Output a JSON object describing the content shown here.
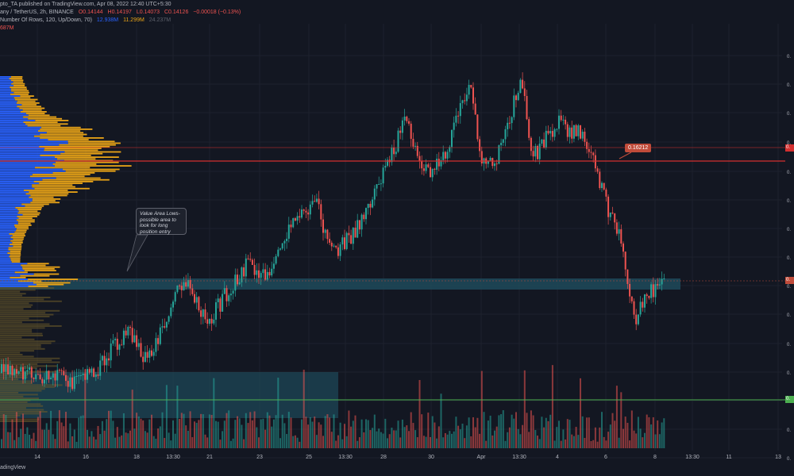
{
  "header": {
    "publisher": "pto_TA published on TradingView.com, Apr 08, 2022 12:40 UTC+5:30",
    "symbol": "any / TetherUS, 2h, BINANCE",
    "open": "O0.14144",
    "high": "H0.14197",
    "low": "L0.14073",
    "close": "C0.14126",
    "change": "−0.00018 (−0.13%)",
    "indicator": "Number Of Rows, 120, Up/Down, 70)",
    "ind_val1": "12.938M",
    "ind_val2": "11.299M",
    "ind_val3": "24.237M",
    "ind_val4": "687M"
  },
  "annotations": {
    "callout_text": "Value Area Lows- possible area to look for long position entry",
    "price_tag": "0.16212"
  },
  "axis": {
    "x_labels": [
      "14",
      "16",
      "18",
      "13:30",
      "21",
      "23",
      "25",
      "13:30",
      "28",
      "30",
      "Apr",
      "13:30",
      "4",
      "6",
      "8",
      "13:30",
      "11",
      "13"
    ],
    "y_labels": [
      "0.",
      "0.",
      "0.",
      "0.",
      "0.",
      "0.",
      "0.",
      "0.",
      "0.",
      "0.",
      "0.",
      "0.",
      "0.",
      "0.",
      "0."
    ],
    "right_tags": [
      "0.",
      "0.",
      "0."
    ]
  },
  "footer": {
    "brand": "adingView"
  },
  "colors": {
    "background": "#131722",
    "up": "#26a69a",
    "down": "#ef5350",
    "vp_up": "#2962ff",
    "vp_down": "#e8a317",
    "zone": "#1e4a5a",
    "resistance": "#d32f2f",
    "support": "#4caf50"
  }
}
